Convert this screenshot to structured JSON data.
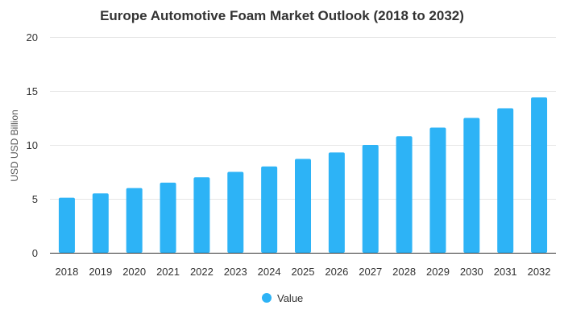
{
  "chart_data": {
    "type": "bar",
    "title": "Europe Automotive Foam Market Outlook (2018 to 2032)",
    "xlabel": "",
    "ylabel": "USD USD Billion",
    "categories": [
      "2018",
      "2019",
      "2020",
      "2021",
      "2022",
      "2023",
      "2024",
      "2025",
      "2026",
      "2027",
      "2028",
      "2029",
      "2030",
      "2031",
      "2032"
    ],
    "series": [
      {
        "name": "Value",
        "values": [
          5.1,
          5.5,
          6.0,
          6.5,
          7.0,
          7.5,
          8.0,
          8.7,
          9.3,
          10.0,
          10.8,
          11.6,
          12.5,
          13.4,
          14.4
        ]
      }
    ],
    "ylim": [
      0,
      20
    ],
    "yticks": [
      "0",
      "5",
      "10",
      "15",
      "20"
    ],
    "grid": true,
    "legend_position": "bottom-center",
    "colors": {
      "bar": "#2db3f6"
    }
  }
}
